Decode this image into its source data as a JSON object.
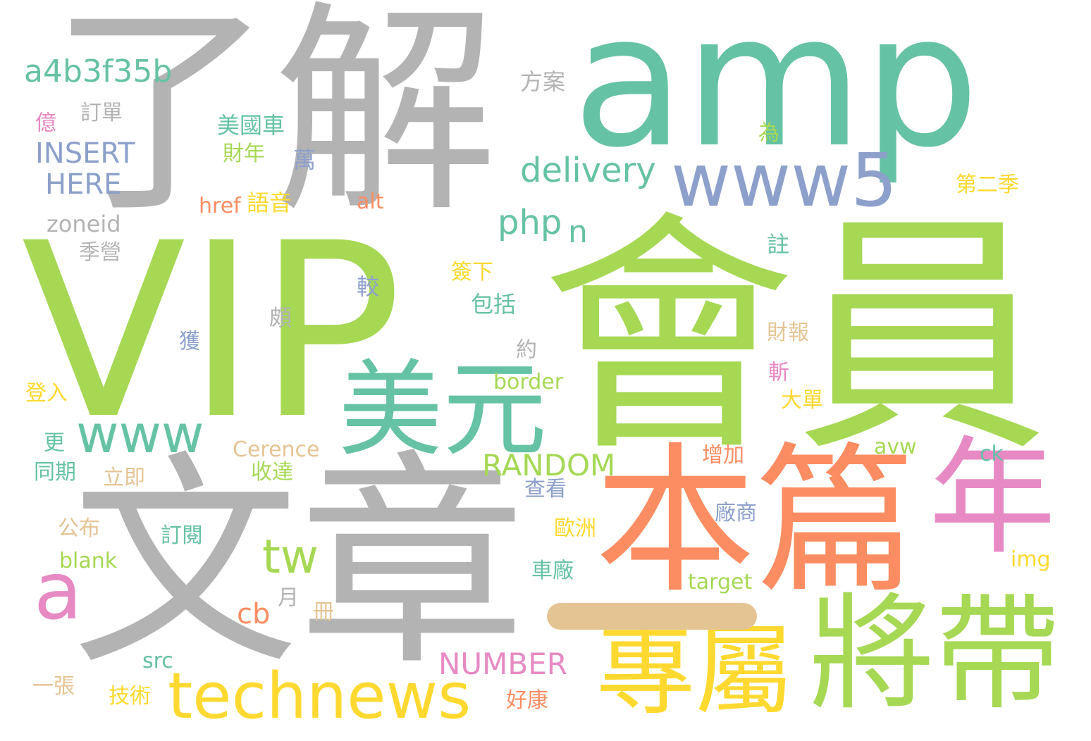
{
  "words": [
    {
      "text": "了解",
      "color": "#b3b3b3"
    },
    {
      "text": "amp",
      "color": "#66c2a5"
    },
    {
      "text": "VIP",
      "color": "#a6d854"
    },
    {
      "text": "會員",
      "color": "#a6d854"
    },
    {
      "text": "文章",
      "color": "#b3b3b3"
    },
    {
      "text": "本篇",
      "color": "#fc8d62"
    },
    {
      "text": "年",
      "color": "#e78ac3"
    },
    {
      "text": "將帶",
      "color": "#a6d854"
    },
    {
      "text": "專屬",
      "color": "#ffd92f"
    },
    {
      "text": "美元",
      "color": "#66c2a5"
    },
    {
      "text": "www5",
      "color": "#8da0cb"
    },
    {
      "text": "technews",
      "color": "#ffd92f"
    },
    {
      "text": "www",
      "color": "#66c2a5"
    },
    {
      "text": "a",
      "color": "#e78ac3"
    },
    {
      "text": "tw",
      "color": "#a6d854"
    },
    {
      "text": "delivery",
      "color": "#66c2a5"
    },
    {
      "text": "a4b3f35b",
      "color": "#66c2a5"
    },
    {
      "text": "INSERT",
      "color": "#8da0cb"
    },
    {
      "text": "HERE",
      "color": "#8da0cb"
    },
    {
      "text": "RANDOM",
      "color": "#a6d854"
    },
    {
      "text": "NUMBER",
      "color": "#e78ac3"
    },
    {
      "text": "php",
      "color": "#66c2a5"
    },
    {
      "text": "n",
      "color": "#66c2a5"
    },
    {
      "text": "cb",
      "color": "#fc8d62"
    },
    {
      "text": "方案",
      "color": "#b3b3b3"
    },
    {
      "text": "訂單",
      "color": "#b3b3b3"
    },
    {
      "text": "億",
      "color": "#e78ac3"
    },
    {
      "text": "美國車",
      "color": "#66c2a5"
    },
    {
      "text": "財年",
      "color": "#a6d854"
    },
    {
      "text": "萬",
      "color": "#8da0cb"
    },
    {
      "text": "為",
      "color": "#a6d854"
    },
    {
      "text": "第二季",
      "color": "#ffd92f"
    },
    {
      "text": "href",
      "color": "#fc8d62"
    },
    {
      "text": "語音",
      "color": "#ffd92f"
    },
    {
      "text": "alt",
      "color": "#fc8d62"
    },
    {
      "text": "zoneid",
      "color": "#b3b3b3"
    },
    {
      "text": "季營",
      "color": "#b3b3b3"
    },
    {
      "text": "註",
      "color": "#66c2a5"
    },
    {
      "text": "簽下",
      "color": "#ffd92f"
    },
    {
      "text": "較",
      "color": "#8da0cb"
    },
    {
      "text": "包括",
      "color": "#66c2a5"
    },
    {
      "text": "頗",
      "color": "#b3b3b3"
    },
    {
      "text": "獲",
      "color": "#8da0cb"
    },
    {
      "text": "財報",
      "color": "#e5c494"
    },
    {
      "text": "約",
      "color": "#b3b3b3"
    },
    {
      "text": "斬",
      "color": "#e78ac3"
    },
    {
      "text": "border",
      "color": "#a6d854"
    },
    {
      "text": "登入",
      "color": "#ffd92f"
    },
    {
      "text": "大單",
      "color": "#ffd92f"
    },
    {
      "text": "更",
      "color": "#66c2a5"
    },
    {
      "text": "Cerence",
      "color": "#e5c494"
    },
    {
      "text": "avw",
      "color": "#a6d854"
    },
    {
      "text": "ck",
      "color": "#66c2a5"
    },
    {
      "text": "增加",
      "color": "#fc8d62"
    },
    {
      "text": "同期",
      "color": "#66c2a5"
    },
    {
      "text": "立即",
      "color": "#e5c494"
    },
    {
      "text": "收達",
      "color": "#a6d854"
    },
    {
      "text": "查看",
      "color": "#8da0cb"
    },
    {
      "text": "廠商",
      "color": "#8da0cb"
    },
    {
      "text": "公布",
      "color": "#e5c494"
    },
    {
      "text": "訂閱",
      "color": "#66c2a5"
    },
    {
      "text": "歐洲",
      "color": "#ffd92f"
    },
    {
      "text": "blank",
      "color": "#a6d854"
    },
    {
      "text": "img",
      "color": "#ffd92f"
    },
    {
      "text": "車廠",
      "color": "#66c2a5"
    },
    {
      "text": "target",
      "color": "#a6d854"
    },
    {
      "text": "月",
      "color": "#b3b3b3"
    },
    {
      "text": "冊",
      "color": "#e5c494"
    },
    {
      "text": "src",
      "color": "#66c2a5"
    },
    {
      "text": "一張",
      "color": "#e5c494"
    },
    {
      "text": "技術",
      "color": "#ffd92f"
    },
    {
      "text": "好康",
      "color": "#fc8d62"
    },
    {
      "text": "一",
      "color": "#e5c494"
    }
  ]
}
